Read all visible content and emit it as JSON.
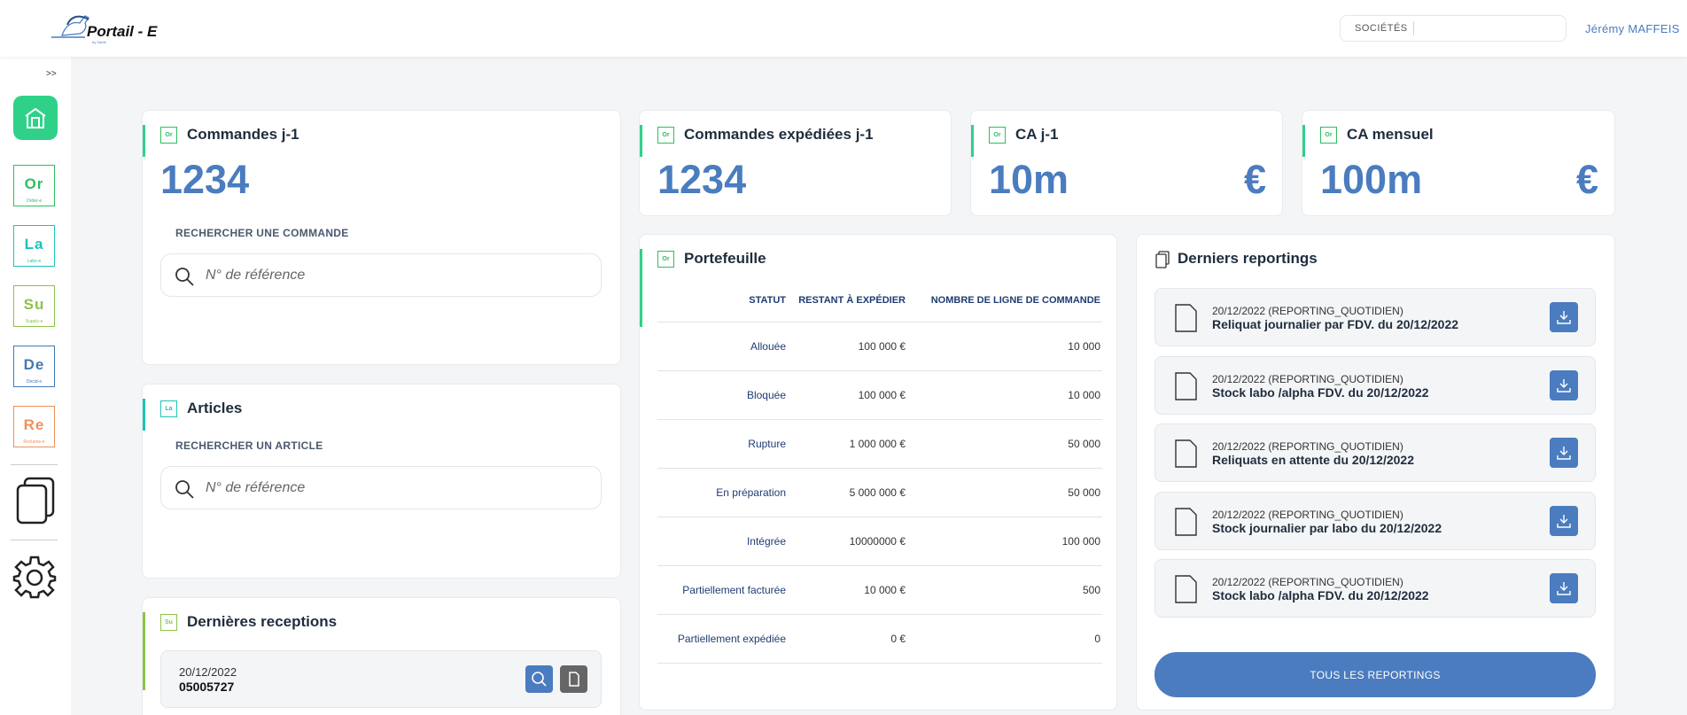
{
  "header": {
    "logo_text": "Portail - E",
    "logo_sub": "by Santé",
    "societes_label": "SOCIÉTÉS",
    "user_name": "Jérémy MAFFEIS"
  },
  "sidebar": {
    "collapse_label": ">>",
    "apps": [
      {
        "symbol": "Or",
        "name": "Order-e",
        "color": "#2bbf5f"
      },
      {
        "symbol": "La",
        "name": "Labo-e",
        "color": "#1cc3b8"
      },
      {
        "symbol": "Su",
        "name": "Supply-e",
        "color": "#8bc34a"
      },
      {
        "symbol": "De",
        "name": "Decid-e",
        "color": "#3f7ab8"
      },
      {
        "symbol": "Re",
        "name": "Reclame-e",
        "color": "#f0905a"
      }
    ]
  },
  "kpis": {
    "commandes": {
      "badge": "Or",
      "title": "Commandes j-1",
      "value": "1234"
    },
    "expediees": {
      "badge": "Or",
      "title": "Commandes expédiées j-1",
      "value": "1234"
    },
    "ca_j1": {
      "badge": "Or",
      "title": "CA j-1",
      "value": "10m",
      "currency": "€"
    },
    "ca_mensuel": {
      "badge": "Or",
      "title": "CA mensuel",
      "value": "100m",
      "currency": "€"
    }
  },
  "commande_search": {
    "label": "RECHERCHER UNE COMMANDE",
    "placeholder": "N° de référence"
  },
  "articles": {
    "badge": "La",
    "title": "Articles",
    "search_label": "RECHERCHER UN ARTICLE",
    "placeholder": "N° de référence"
  },
  "receptions": {
    "badge": "Su",
    "title": "Dernières receptions",
    "items": [
      {
        "date": "20/12/2022",
        "ref": "05005727"
      }
    ]
  },
  "portefeuille": {
    "badge": "Or",
    "title": "Portefeuille",
    "columns": [
      "STATUT",
      "RESTANT À EXPÉDIER",
      "NOMBRE DE LIGNE DE COMMANDE"
    ],
    "rows": [
      {
        "statut": "Allouée",
        "restant": "100 000 €",
        "lignes": "10 000"
      },
      {
        "statut": "Bloquée",
        "restant": "100 000 €",
        "lignes": "10 000"
      },
      {
        "statut": "Rupture",
        "restant": "1 000 000 €",
        "lignes": "50 000"
      },
      {
        "statut": "En préparation",
        "restant": "5 000 000 €",
        "lignes": "50 000"
      },
      {
        "statut": "Intégrée",
        "restant": "10000000 €",
        "lignes": "100 000"
      },
      {
        "statut": "Partiellement facturée",
        "restant": "10 000 €",
        "lignes": "500"
      },
      {
        "statut": "Partiellement expédiée",
        "restant": "0 €",
        "lignes": "0"
      }
    ]
  },
  "reportings": {
    "title": "Derniers reportings",
    "items": [
      {
        "date": "20/12/2022 (REPORTING_QUOTIDIEN)",
        "title": "Reliquat journalier par FDV. du 20/12/2022"
      },
      {
        "date": "20/12/2022 (REPORTING_QUOTIDIEN)",
        "title": "Stock labo /alpha FDV. du 20/12/2022"
      },
      {
        "date": "20/12/2022 (REPORTING_QUOTIDIEN)",
        "title": "Reliquats en attente du 20/12/2022"
      },
      {
        "date": "20/12/2022 (REPORTING_QUOTIDIEN)",
        "title": "Stock journalier par labo du 20/12/2022"
      },
      {
        "date": "20/12/2022 (REPORTING_QUOTIDIEN)",
        "title": "Stock labo /alpha FDV. du 20/12/2022"
      }
    ],
    "all_button": "TOUS LES REPORTINGS"
  },
  "colors": {
    "accent_blue": "#4a7cbf",
    "green": "#2fd188",
    "orange": "#f0905a",
    "teal": "#1cc3b8",
    "lime": "#8bc34a"
  }
}
